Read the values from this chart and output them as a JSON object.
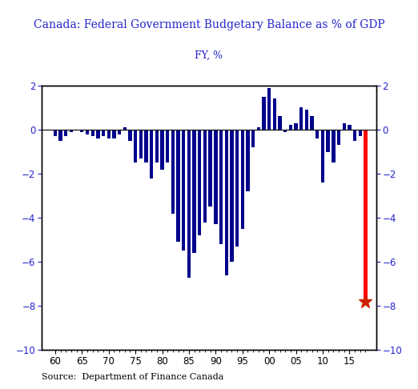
{
  "title": "Canada: Federal Government Budgetary Balance as % of GDP",
  "subtitle": "FY, %",
  "source": "Source:  Department of Finance Canada",
  "bar_color": "#00008B",
  "highlight_color": "#FF0000",
  "star_color": "#CC2200",
  "background_color": "#FFFFFF",
  "text_color": "#2222CC",
  "tick_label_color": "#2222CC",
  "ylim": [
    -10,
    2
  ],
  "yticks": [
    -10,
    -8,
    -6,
    -4,
    -2,
    0,
    2
  ],
  "xlabel_ticks": [
    "60",
    "65",
    "70",
    "75",
    "80",
    "85",
    "90",
    "95",
    "00",
    "05",
    "10",
    "15"
  ],
  "xtick_positions": [
    1960,
    1965,
    1970,
    1975,
    1980,
    1985,
    1990,
    1995,
    2000,
    2005,
    2010,
    2015
  ],
  "years": [
    1960,
    1961,
    1962,
    1963,
    1964,
    1965,
    1966,
    1967,
    1968,
    1969,
    1970,
    1971,
    1972,
    1973,
    1974,
    1975,
    1976,
    1977,
    1978,
    1979,
    1980,
    1981,
    1982,
    1983,
    1984,
    1985,
    1986,
    1987,
    1988,
    1989,
    1990,
    1991,
    1992,
    1993,
    1994,
    1995,
    1996,
    1997,
    1998,
    1999,
    2000,
    2001,
    2002,
    2003,
    2004,
    2005,
    2006,
    2007,
    2008,
    2009,
    2010,
    2011,
    2012,
    2013,
    2014,
    2015,
    2016,
    2017,
    2018
  ],
  "values": [
    -0.3,
    -0.5,
    -0.3,
    -0.1,
    0.0,
    -0.1,
    -0.2,
    -0.3,
    -0.4,
    -0.3,
    -0.4,
    -0.4,
    -0.2,
    0.1,
    -0.5,
    -1.5,
    -1.3,
    -1.5,
    -2.2,
    -1.5,
    -1.8,
    -1.5,
    -3.8,
    -5.1,
    -5.5,
    -6.7,
    -5.6,
    -4.8,
    -4.2,
    -3.5,
    -4.3,
    -5.2,
    -6.6,
    -6.0,
    -5.3,
    -4.5,
    -2.8,
    -0.8,
    0.1,
    1.5,
    1.9,
    1.4,
    0.6,
    -0.1,
    0.2,
    0.3,
    1.0,
    0.9,
    0.6,
    -0.4,
    -2.4,
    -1.0,
    -1.5,
    -0.7,
    0.3,
    0.2,
    -0.5,
    -0.3,
    -7.8
  ],
  "highlight_year": 2018,
  "highlight_value": -7.8,
  "xlim_left": 1957.5,
  "xlim_right": 2020.0,
  "bar_width": 0.65
}
